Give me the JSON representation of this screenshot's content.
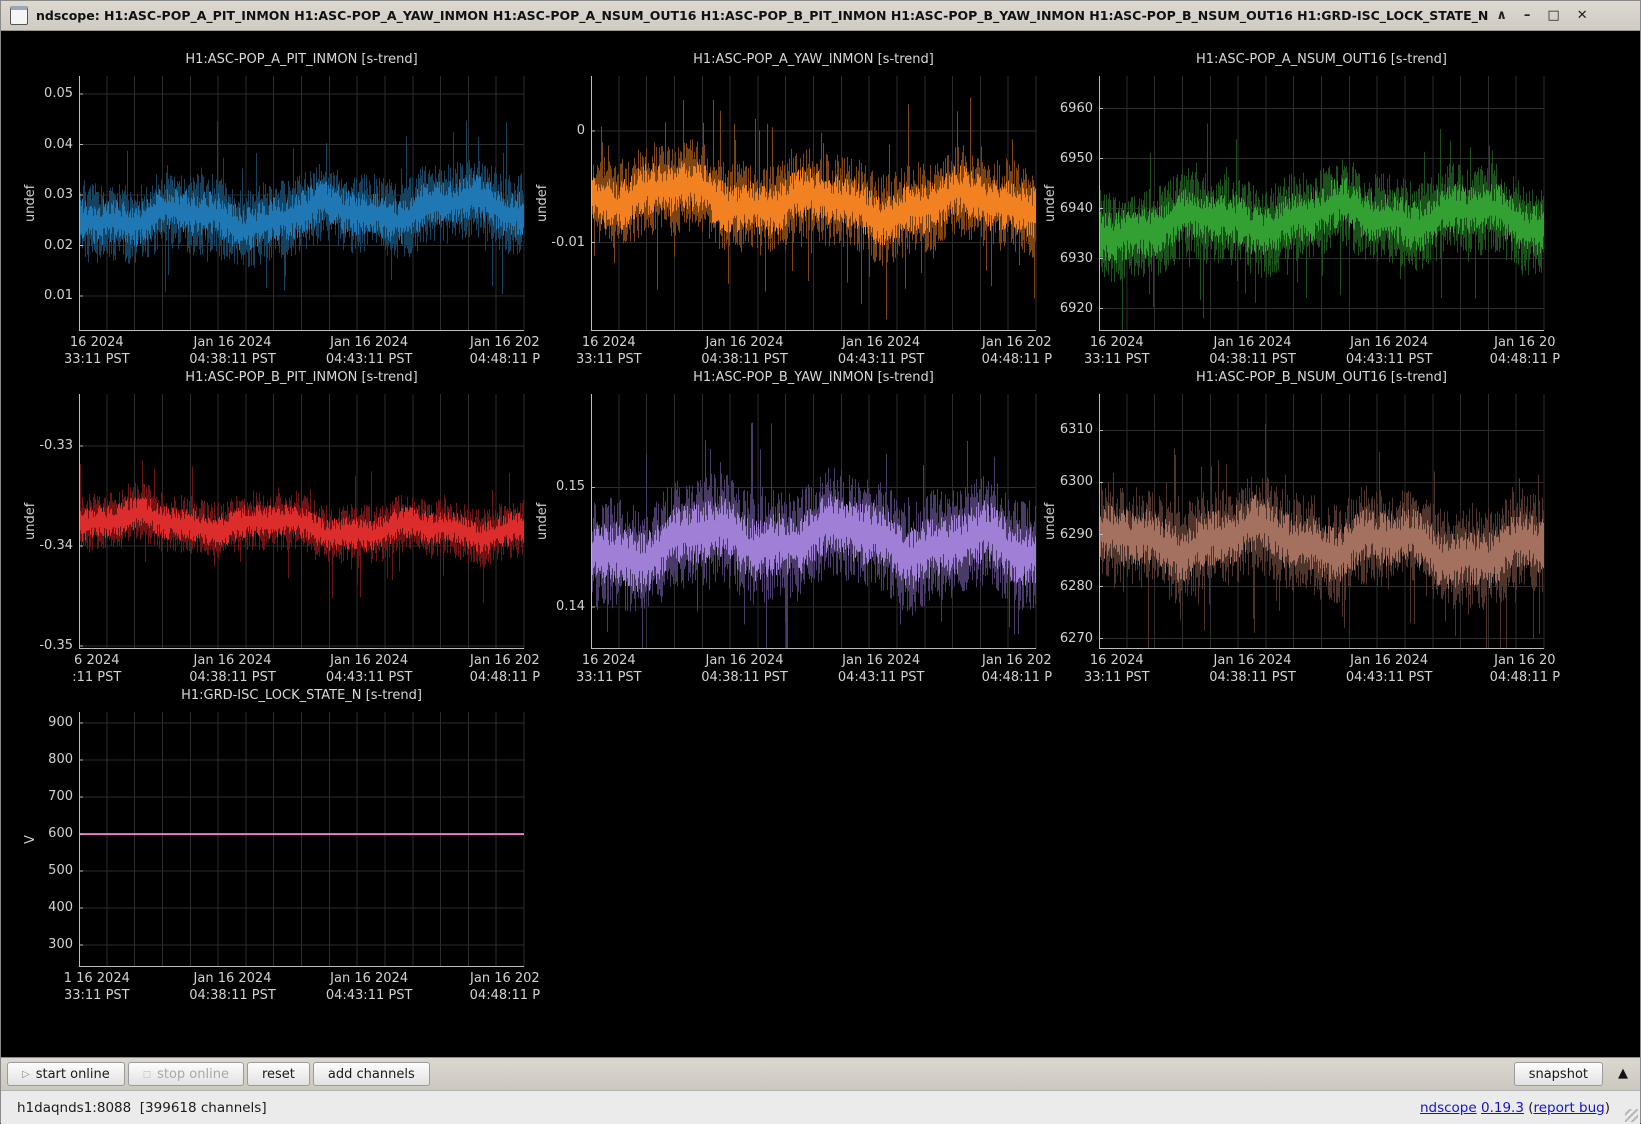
{
  "window": {
    "title": "ndscope: H1:ASC-POP_A_PIT_INMON H1:ASC-POP_A_YAW_INMON H1:ASC-POP_A_NSUM_OUT16 H1:ASC-POP_B_PIT_INMON H1:ASC-POP_B_YAW_INMON H1:ASC-POP_B_NSUM_OUT16 H1:GRD-ISC_LOCK_STATE_N"
  },
  "icons": {
    "shade": "∧",
    "minimize": "–",
    "maximize": "□",
    "close": "✕",
    "start": "▷",
    "stop": "◻",
    "collapse": "▲"
  },
  "toolbar": {
    "start_label": "start online",
    "stop_label": "stop online",
    "reset_label": "reset",
    "add_channels_label": "add channels",
    "snapshot_label": "snapshot"
  },
  "statusbar": {
    "server": "h1daqnds1:8088  [399618 channels]",
    "app_link": "ndscope",
    "version_link": "0.19.3",
    "paren_open": " (",
    "report_link": "report bug",
    "paren_close": ")"
  },
  "chart_data": [
    {
      "type": "band",
      "trend": "s-trend",
      "channel": "H1:ASC-POP_A_PIT_INMON",
      "title": "H1:ASC-POP_A_PIT_INMON [s-trend]",
      "ylabel": "undef",
      "yticks": [
        0.05,
        0.04,
        0.03,
        0.02,
        0.01
      ],
      "ytick_labels": [
        "0.05",
        "0.04",
        "0.03",
        "0.02",
        "0.01"
      ],
      "ylim": [
        0.0031,
        0.0536
      ],
      "mean": 0.0265,
      "spread": 0.0062,
      "color": "#1f77b4",
      "band_color": "#14425f",
      "seed": 11,
      "xticks": [
        {
          "date": "16 2024",
          "time": "33:11 PST"
        },
        {
          "date": "Jan 16 2024",
          "time": "04:38:11 PST"
        },
        {
          "date": "Jan 16 2024",
          "time": "04:43:11 PST"
        },
        {
          "date": "Jan 16 202",
          "time": "04:48:11 P"
        }
      ]
    },
    {
      "type": "band",
      "trend": "s-trend",
      "channel": "H1:ASC-POP_A_YAW_INMON",
      "title": "H1:ASC-POP_A_YAW_INMON [s-trend]",
      "ylabel": "undef",
      "yticks": [
        0,
        -0.01
      ],
      "ytick_labels": [
        "0",
        "-0.01"
      ],
      "ylim": [
        -0.0179,
        0.0049
      ],
      "mean": -0.0062,
      "spread": 0.0032,
      "color": "#f28122",
      "band_color": "#7e4512",
      "seed": 22,
      "xticks": [
        {
          "date": "16 2024",
          "time": "33:11 PST"
        },
        {
          "date": "Jan 16 2024",
          "time": "04:38:11 PST"
        },
        {
          "date": "Jan 16 2024",
          "time": "04:43:11 PST"
        },
        {
          "date": "Jan 16 202",
          "time": "04:48:11 P"
        }
      ]
    },
    {
      "type": "band",
      "trend": "s-trend",
      "channel": "H1:ASC-POP_A_NSUM_OUT16",
      "title": "H1:ASC-POP_A_NSUM_OUT16 [s-trend]",
      "ylabel": "undef",
      "yticks": [
        6960,
        6950,
        6940,
        6930,
        6920
      ],
      "ytick_labels": [
        "6960",
        "6950",
        "6940",
        "6930",
        "6920"
      ],
      "ylim": [
        6915.5,
        6966.5
      ],
      "mean": 6937.5,
      "spread": 7.0,
      "color": "#33a033",
      "band_color": "#1b521b",
      "seed": 33,
      "xticks": [
        {
          "date": "16 2024",
          "time": "33:11 PST"
        },
        {
          "date": "Jan 16 2024",
          "time": "04:38:11 PST"
        },
        {
          "date": "Jan 16 2024",
          "time": "04:43:11 PST"
        },
        {
          "date": "Jan 16 20",
          "time": "04:48:11 P"
        }
      ]
    },
    {
      "type": "band",
      "trend": "s-trend",
      "channel": "H1:ASC-POP_B_PIT_INMON",
      "title": "H1:ASC-POP_B_PIT_INMON [s-trend]",
      "ylabel": "undef",
      "yticks": [
        -0.33,
        -0.34,
        -0.35
      ],
      "ytick_labels": [
        "-0.33",
        "-0.34",
        "-0.35"
      ],
      "ylim": [
        -0.3503,
        -0.3248
      ],
      "mean": -0.338,
      "spread": 0.0023,
      "color": "#dd2c2c",
      "band_color": "#6e1414",
      "seed": 44,
      "xticks": [
        {
          "date": "6 2024",
          "time": ":11 PST"
        },
        {
          "date": "Jan 16 2024",
          "time": "04:38:11 PST"
        },
        {
          "date": "Jan 16 2024",
          "time": "04:43:11 PST"
        },
        {
          "date": "Jan 16 202",
          "time": "04:48:11 P"
        }
      ]
    },
    {
      "type": "band",
      "trend": "s-trend",
      "channel": "H1:ASC-POP_B_YAW_INMON",
      "title": "H1:ASC-POP_B_YAW_INMON [s-trend]",
      "ylabel": "undef",
      "yticks": [
        0.15,
        0.14
      ],
      "ytick_labels": [
        "0.15",
        "0.14"
      ],
      "ylim": [
        0.1365,
        0.1578
      ],
      "mean": 0.1452,
      "spread": 0.0036,
      "color": "#a07fd6",
      "band_color": "#4a3a68",
      "seed": 55,
      "xticks": [
        {
          "date": "16 2024",
          "time": "33:11 PST"
        },
        {
          "date": "Jan 16 2024",
          "time": "04:38:11 PST"
        },
        {
          "date": "Jan 16 2024",
          "time": "04:43:11 PST"
        },
        {
          "date": "Jan 16 202",
          "time": "04:48:11 P"
        }
      ]
    },
    {
      "type": "band",
      "trend": "s-trend",
      "channel": "H1:ASC-POP_B_NSUM_OUT16",
      "title": "H1:ASC-POP_B_NSUM_OUT16 [s-trend]",
      "ylabel": "undef",
      "yticks": [
        6310,
        6300,
        6290,
        6280,
        6270
      ],
      "ytick_labels": [
        "6310",
        "6300",
        "6290",
        "6280",
        "6270"
      ],
      "ylim": [
        6268,
        6317
      ],
      "mean": 6288,
      "spread": 7.5,
      "color": "#a4705f",
      "band_color": "#4e342a",
      "seed": 66,
      "xticks": [
        {
          "date": "16 2024",
          "time": "33:11 PST"
        },
        {
          "date": "Jan 16 2024",
          "time": "04:38:11 PST"
        },
        {
          "date": "Jan 16 2024",
          "time": "04:43:11 PST"
        },
        {
          "date": "Jan 16 20",
          "time": "04:48:11 P"
        }
      ]
    },
    {
      "type": "hline",
      "trend": "s-trend",
      "channel": "H1:GRD-ISC_LOCK_STATE_N",
      "title": "H1:GRD-ISC_LOCK_STATE_N [s-trend]",
      "ylabel": "V",
      "yticks": [
        900,
        800,
        700,
        600,
        500,
        400,
        300
      ],
      "ytick_labels": [
        "900",
        "800",
        "700",
        "600",
        "500",
        "400",
        "300"
      ],
      "ylim": [
        241,
        930
      ],
      "value": 600,
      "color": "#e87fc6",
      "band_color": "#e87fc6",
      "seed": 77,
      "xticks": [
        {
          "date": "1 16 2024",
          "time": "33:11 PST"
        },
        {
          "date": "Jan 16 2024",
          "time": "04:38:11 PST"
        },
        {
          "date": "Jan 16 2024",
          "time": "04:43:11 PST"
        },
        {
          "date": "Jan 16 202",
          "time": "04:48:11 P"
        }
      ]
    }
  ]
}
